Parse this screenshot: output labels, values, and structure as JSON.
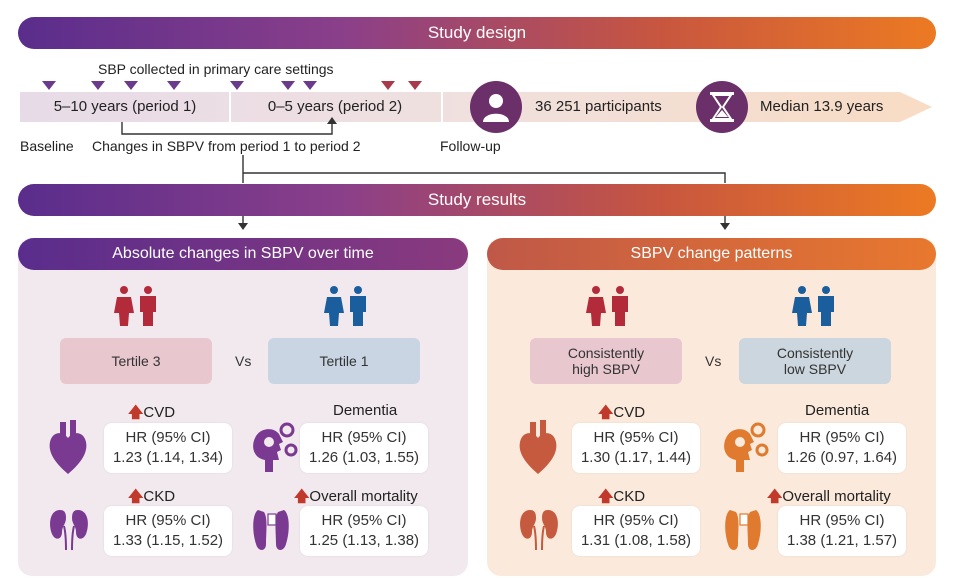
{
  "design": {
    "title": "Study design",
    "sbp_note": "SBP collected in primary care settings",
    "period1": "5–10 years (period 1)",
    "period2": "0–5 years (period 2)",
    "participants": "36 251 participants",
    "median": "Median 13.9 years",
    "baseline": "Baseline",
    "changes": "Changes in SBPV from period 1 to period 2",
    "followup": "Follow-up"
  },
  "results": {
    "title": "Study results",
    "left": {
      "title": "Absolute changes in SBPV over time",
      "group_a": "Tertile 3",
      "vs": "Vs",
      "group_b": "Tertile 1",
      "outcomes": [
        {
          "name": "CVD",
          "hr_label": "HR (95% CI)",
          "value": "1.23 (1.14, 1.34)",
          "arrow": true
        },
        {
          "name": "Dementia",
          "hr_label": "HR (95% CI)",
          "value": "1.26 (1.03, 1.55)",
          "arrow": false
        },
        {
          "name": "CKD",
          "hr_label": "HR (95% CI)",
          "value": "1.33 (1.15, 1.52)",
          "arrow": true
        },
        {
          "name": "Overall mortality",
          "hr_label": "HR (95% CI)",
          "value": "1.25 (1.13, 1.38)",
          "arrow": true
        }
      ]
    },
    "right": {
      "title": "SBPV change patterns",
      "group_a_line1": "Consistently",
      "group_a_line2": "high SBPV",
      "vs": "Vs",
      "group_b_line1": "Consistently",
      "group_b_line2": "low SBPV",
      "outcomes": [
        {
          "name": "CVD",
          "hr_label": "HR (95% CI)",
          "value": "1.30 (1.17, 1.44)",
          "arrow": true
        },
        {
          "name": "Dementia",
          "hr_label": "HR (95% CI)",
          "value": "1.26 (0.97, 1.64)",
          "arrow": false
        },
        {
          "name": "CKD",
          "hr_label": "HR (95% CI)",
          "value": "1.31 (1.08, 1.58)",
          "arrow": true
        },
        {
          "name": "Overall mortality",
          "hr_label": "HR (95% CI)",
          "value": "1.38 (1.21, 1.57)",
          "arrow": true
        }
      ]
    }
  },
  "colors": {
    "purple": "#6b3a8c",
    "orange": "#e87a30",
    "red_up": "#c0392b",
    "tertile3_fill": "#e8c7cf",
    "tertile1_fill": "#c9d5e3"
  },
  "icons": [
    "down-triangle-icon",
    "person-icon",
    "hourglass-icon",
    "female-male-icon",
    "heart-icon",
    "brain-gears-icon",
    "kidneys-icon",
    "feet-tag-icon",
    "up-arrow-icon"
  ]
}
